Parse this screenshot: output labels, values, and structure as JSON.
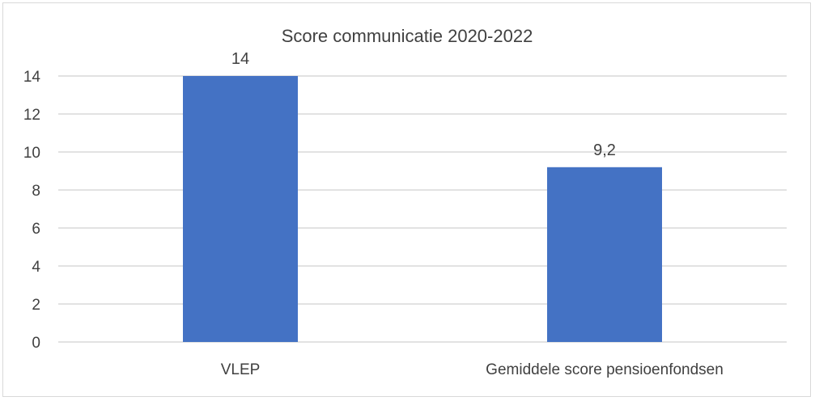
{
  "chart_data": {
    "type": "bar",
    "title": "Score communicatie 2020-2022",
    "categories": [
      "VLEP",
      "Gemiddele score pensioenfondsen"
    ],
    "values": [
      14,
      9.2
    ],
    "data_labels": [
      "14",
      "9,2"
    ],
    "ylim": [
      0,
      14
    ],
    "yticks": [
      0,
      2,
      4,
      6,
      8,
      10,
      12,
      14
    ],
    "xlabel": "",
    "ylabel": "",
    "grid": true,
    "legend": "none",
    "bar_color": "#4472c4"
  }
}
